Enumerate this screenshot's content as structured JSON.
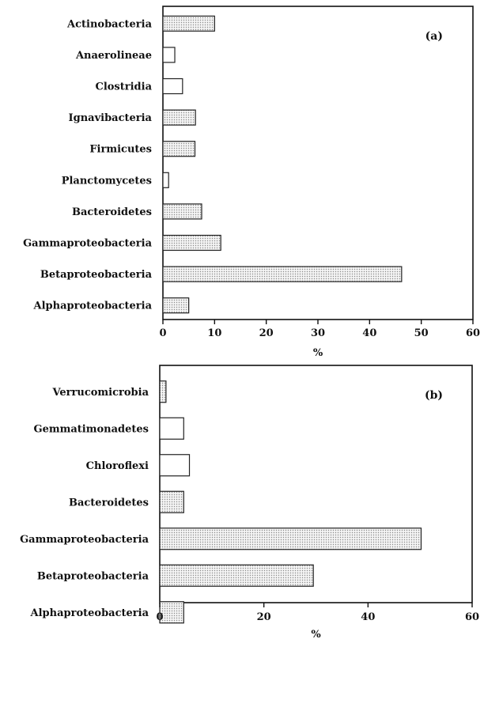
{
  "chart_data": [
    {
      "type": "bar",
      "orientation": "horizontal",
      "panel_label": "(a)",
      "categories": [
        "Actinobacteria",
        "Anaerolineae",
        "Clostridia",
        "Ignavibacteria",
        "Firmicutes",
        "Planctomycetes",
        "Bacteroidetes",
        "Gammaproteobacteria",
        "Betaproteobacteria",
        "Alphaproteobacteria"
      ],
      "values": [
        10.0,
        2.3,
        3.8,
        6.3,
        6.2,
        1.1,
        7.5,
        11.2,
        46.2,
        5.0
      ],
      "bar_fill": [
        "dotted",
        "plain",
        "plain",
        "dotted",
        "dotted",
        "plain",
        "dotted",
        "dotted",
        "dotted",
        "dotted"
      ],
      "xlabel": "%",
      "xlim": [
        0,
        60
      ],
      "xticks": [
        0,
        10,
        20,
        30,
        40,
        50,
        60
      ],
      "grid": false
    },
    {
      "type": "bar",
      "orientation": "horizontal",
      "panel_label": "(b)",
      "categories": [
        "Verrucomicrobia",
        "Gemmatimonadetes",
        "Chloroflexi",
        "Bacteroidetes",
        "Gammaproteobacteria",
        "Betaproteobacteria",
        "Alphaproteobacteria"
      ],
      "values": [
        1.2,
        4.6,
        5.7,
        4.6,
        50.2,
        29.5,
        4.6
      ],
      "bar_fill": [
        "dotted",
        "plain",
        "plain",
        "dotted",
        "dotted",
        "dotted",
        "dotted"
      ],
      "xlabel": "%",
      "xlim": [
        0,
        60
      ],
      "xticks": [
        0,
        20,
        40,
        60
      ],
      "grid": false
    }
  ],
  "colors": {
    "axis": "#111111",
    "bar_stroke": "#222222",
    "bar_plain": "#ffffff",
    "bar_dot": "#8a8a8a",
    "bar_bg": "#f4f4f4"
  }
}
